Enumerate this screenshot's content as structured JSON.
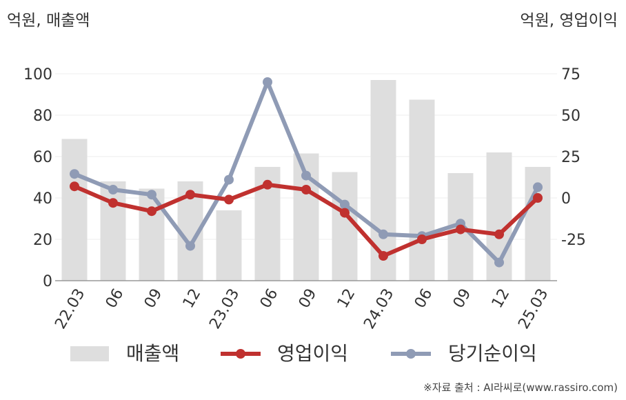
{
  "unit_left": "억원, 매출액",
  "unit_right": "억원, 영업이익",
  "source": "※자료 출처 : AI라씨로(www.rassiro.com)",
  "colors": {
    "revenue": "#dedede",
    "operating_profit": "#c0312f",
    "net_profit": "#8f9bb5",
    "axis": "#999999",
    "grid": "#eeeeee",
    "text": "#333333"
  },
  "chart_data": {
    "type": "bar",
    "categories": [
      "22.03",
      "06",
      "09",
      "12",
      "23.03",
      "06",
      "09",
      "12",
      "24.03",
      "06",
      "09",
      "12",
      "25.03"
    ],
    "y_left": {
      "label": "억원, 매출액",
      "ylim": [
        0,
        100
      ],
      "ticks": [
        "0",
        "20",
        "40",
        "60",
        "80",
        "100"
      ],
      "tick_values": [
        0,
        20,
        40,
        60,
        80,
        100
      ]
    },
    "y_right": {
      "label": "억원, 영업이익",
      "ylim": [
        -50,
        75
      ],
      "ticks": [
        "-25",
        "0",
        "25",
        "50",
        "75"
      ],
      "tick_values": [
        -25,
        0,
        25,
        50,
        75
      ]
    },
    "series": [
      {
        "name": "매출액",
        "kind": "bar",
        "axis": "left",
        "values": [
          68.5,
          48,
          44.5,
          48,
          34,
          55,
          61.5,
          52.5,
          97,
          87.5,
          52,
          62,
          55
        ]
      },
      {
        "name": "영업이익",
        "kind": "line",
        "axis": "right",
        "values": [
          7,
          -3,
          -8,
          2,
          -1,
          8,
          5,
          -9,
          -35,
          -25,
          -19,
          -22,
          0
        ]
      },
      {
        "name": "당기순이익",
        "kind": "line",
        "axis": "right",
        "values": [
          14.5,
          5,
          2,
          -29,
          11,
          70,
          13.5,
          -4,
          -22,
          -23,
          -15.5,
          -39,
          6.5
        ]
      }
    ],
    "legend": [
      "매출액",
      "영업이익",
      "당기순이익"
    ],
    "legend_position": "bottom",
    "grid": true
  }
}
